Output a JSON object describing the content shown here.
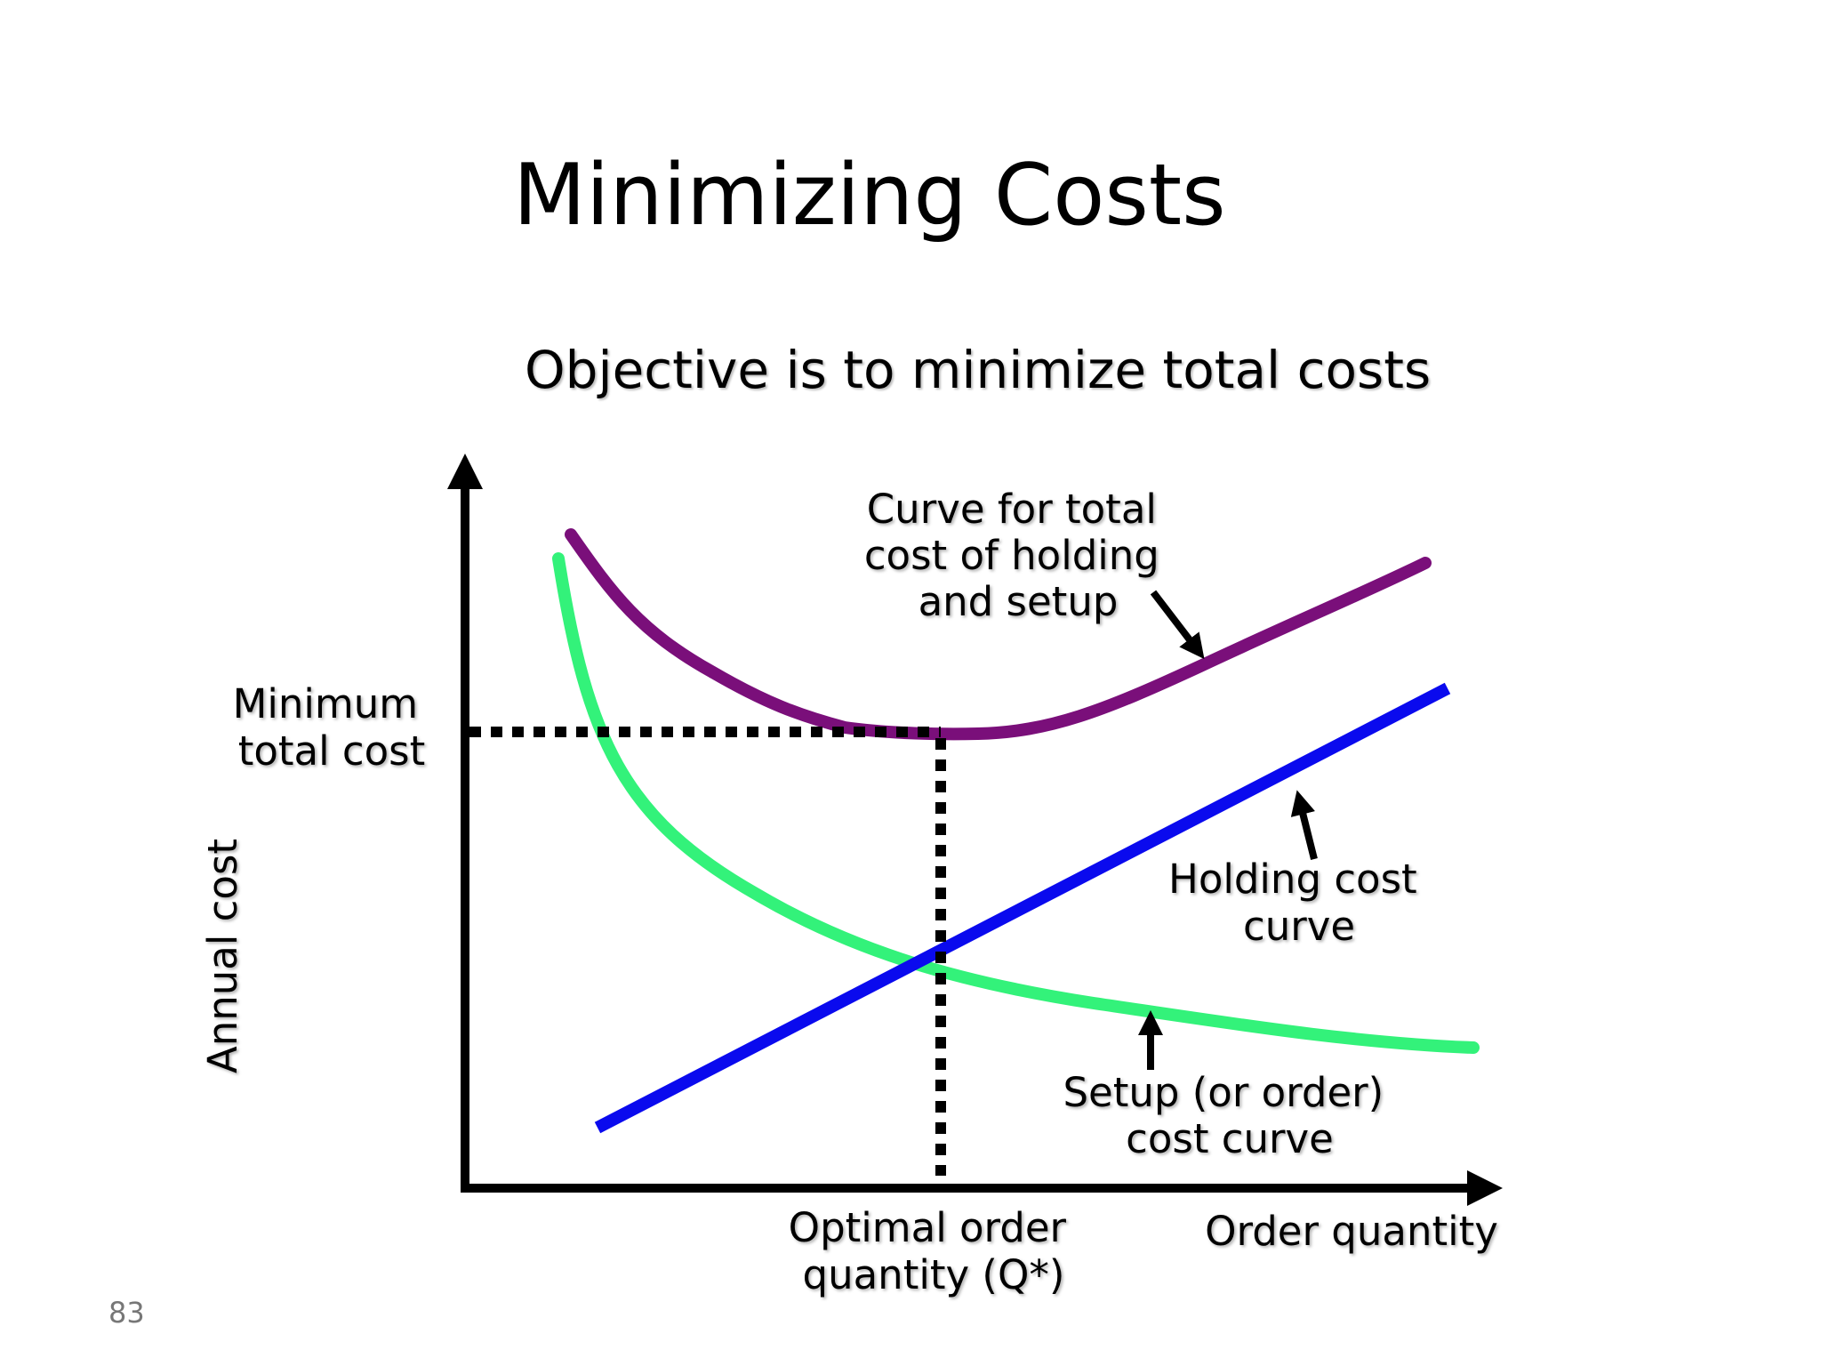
{
  "slide": {
    "title": "Minimizing Costs",
    "subtitle": "Objective is to minimize total costs",
    "page_number": "83"
  },
  "diagram": {
    "y_axis_label": "Annual cost",
    "x_axis_label": "Order quantity",
    "min_total_cost_label": [
      "Minimum",
      "total cost"
    ],
    "optimal_label": [
      "Optimal order",
      "quantity (Q*)"
    ],
    "total_cost_label": [
      "Curve for total",
      "cost of holding",
      "and setup"
    ],
    "holding_label": [
      "Holding cost",
      "curve"
    ],
    "setup_label": [
      "Setup (or order)",
      "cost curve"
    ],
    "colors": {
      "total_cost_curve": "#7a0f7a",
      "holding_cost_curve": "#0a0aee",
      "setup_cost_curve": "#33f27a",
      "axes": "#000000",
      "guide_lines": "#000000"
    }
  }
}
